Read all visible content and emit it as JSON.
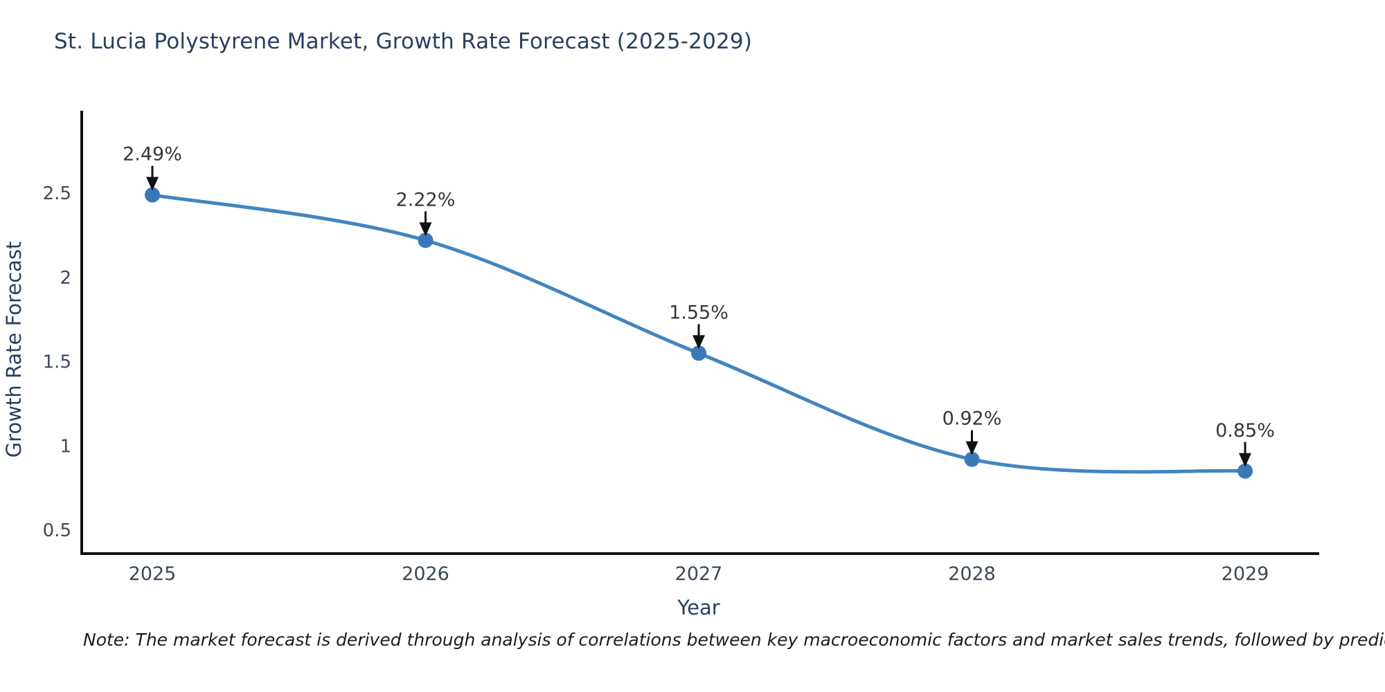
{
  "chart_data": {
    "type": "line",
    "title": "St. Lucia Polystyrene Market, Growth Rate Forecast (2025-2029)",
    "xlabel": "Year",
    "ylabel": "Growth Rate Forecast",
    "x": [
      "2025",
      "2026",
      "2027",
      "2028",
      "2029"
    ],
    "values": [
      2.49,
      2.22,
      1.55,
      0.92,
      0.85
    ],
    "point_labels": [
      "2.49%",
      "2.22%",
      "1.55%",
      "0.92%",
      "0.85%"
    ],
    "yticks": [
      0.5,
      1,
      1.5,
      2,
      2.5
    ],
    "ylim": [
      0.36,
      2.99
    ],
    "grid": false,
    "legend_position": "none",
    "line_shape": "spline",
    "colors": {
      "line": "#4285bf",
      "marker": "#3a79b8",
      "axis": "#111111",
      "title_text": "#2a3f5f",
      "tick_text": "#3b4856",
      "annotation_text": "#33363b",
      "arrow": "#111111"
    }
  },
  "note": "Note: The market forecast is derived through analysis of correlations between key macroeconomic factors and market sales trends, followed by predictive modeling to project future sales"
}
